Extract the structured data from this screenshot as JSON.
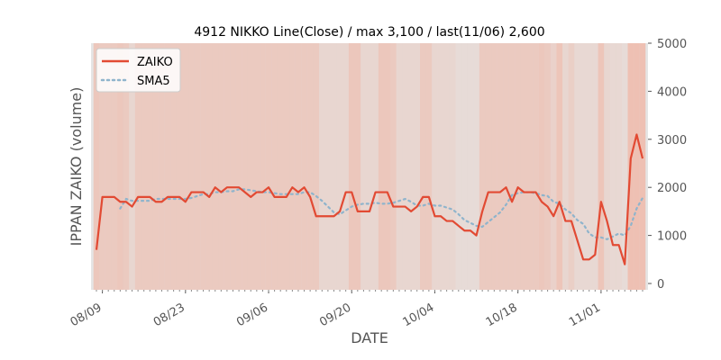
{
  "chart_data": {
    "type": "line",
    "title": "4912 NIKKO Line(Close) / max 3,100 / last(11/06) 2,600",
    "xlabel": "DATE",
    "ylabel": "IPPAN ZAIKO (volume)",
    "ylim": [
      0,
      5000
    ],
    "yticks": [
      "0",
      "1000",
      "2000",
      "3000",
      "4000",
      "5000"
    ],
    "xticks": [
      "08/09",
      "08/23",
      "09/06",
      "09/20",
      "10/04",
      "10/18",
      "11/01"
    ],
    "x_start": "08/08",
    "x_end": "11/06",
    "y_axis_side": "right",
    "legend_position": "top-left",
    "grid": false,
    "series": [
      {
        "name": "ZAIKO",
        "color": "#e24a33",
        "style": "solid",
        "values": [
          700,
          1800,
          1800,
          1800,
          1700,
          1700,
          1600,
          1800,
          1800,
          1800,
          1700,
          1700,
          1800,
          1800,
          1800,
          1700,
          1900,
          1900,
          1900,
          1800,
          2000,
          1900,
          2000,
          2000,
          2000,
          1900,
          1800,
          1900,
          1900,
          2000,
          1800,
          1800,
          1800,
          2000,
          1900,
          2000,
          1800,
          1400,
          1400,
          1400,
          1400,
          1500,
          1900,
          1900,
          1500,
          1500,
          1500,
          1900,
          1900,
          1900,
          1600,
          1600,
          1600,
          1500,
          1600,
          1800,
          1800,
          1400,
          1400,
          1300,
          1300,
          1200,
          1100,
          1100,
          1000,
          1500,
          1900,
          1900,
          1900,
          2000,
          1700,
          2000,
          1900,
          1900,
          1900,
          1700,
          1600,
          1400,
          1700,
          1300,
          1300,
          900,
          500,
          500,
          600,
          1700,
          1300,
          800,
          800,
          400,
          2600,
          3100,
          2600
        ]
      },
      {
        "name": "SMA5",
        "color": "#8fb4cc",
        "style": "dotted",
        "values": [
          null,
          null,
          null,
          null,
          1560,
          1760,
          1720,
          1720,
          1720,
          1720,
          1760,
          1760,
          1760,
          1760,
          1760,
          1760,
          1780,
          1820,
          1860,
          1860,
          1900,
          1900,
          1920,
          1920,
          1960,
          1960,
          1940,
          1920,
          1900,
          1900,
          1880,
          1860,
          1860,
          1860,
          1860,
          1900,
          1900,
          1820,
          1720,
          1600,
          1480,
          1440,
          1520,
          1600,
          1640,
          1660,
          1660,
          1680,
          1660,
          1660,
          1680,
          1720,
          1760,
          1700,
          1620,
          1620,
          1660,
          1620,
          1620,
          1580,
          1540,
          1440,
          1320,
          1260,
          1200,
          1180,
          1280,
          1380,
          1480,
          1640,
          1840,
          1880,
          1900,
          1900,
          1880,
          1840,
          1820,
          1700,
          1660,
          1540,
          1460,
          1320,
          1240,
          1040,
          960,
          960,
          920,
          980,
          1040,
          1000,
          1200,
          1560,
          1780
        ]
      }
    ],
    "background_shading": [
      0.45,
      0.4,
      0.4,
      0.4,
      0.45,
      0.4,
      0.15,
      0.4,
      0.4,
      0.4,
      0.4,
      0.4,
      0.4,
      0.4,
      0.4,
      0.4,
      0.4,
      0.4,
      0.4,
      0.4,
      0.4,
      0.4,
      0.4,
      0.4,
      0.4,
      0.4,
      0.4,
      0.4,
      0.4,
      0.4,
      0.4,
      0.4,
      0.4,
      0.4,
      0.4,
      0.4,
      0.4,
      0.4,
      0.15,
      0.15,
      0.15,
      0.15,
      0.15,
      0.45,
      0.45,
      0.15,
      0.15,
      0.15,
      0.45,
      0.45,
      0.4,
      0.15,
      0.15,
      0.15,
      0.15,
      0.4,
      0.4,
      0.15,
      0.15,
      0.15,
      0.15,
      0.05,
      0.05,
      0.05,
      0.05,
      0.4,
      0.4,
      0.4,
      0.4,
      0.4,
      0.4,
      0.4,
      0.4,
      0.4,
      0.4,
      0.45,
      0.4,
      0.25,
      0.5,
      0.15,
      0.3,
      0.1,
      0.1,
      0.1,
      0.1,
      0.5,
      0.15,
      0.1,
      0.1,
      0.05,
      0.6,
      0.6,
      0.6
    ]
  }
}
